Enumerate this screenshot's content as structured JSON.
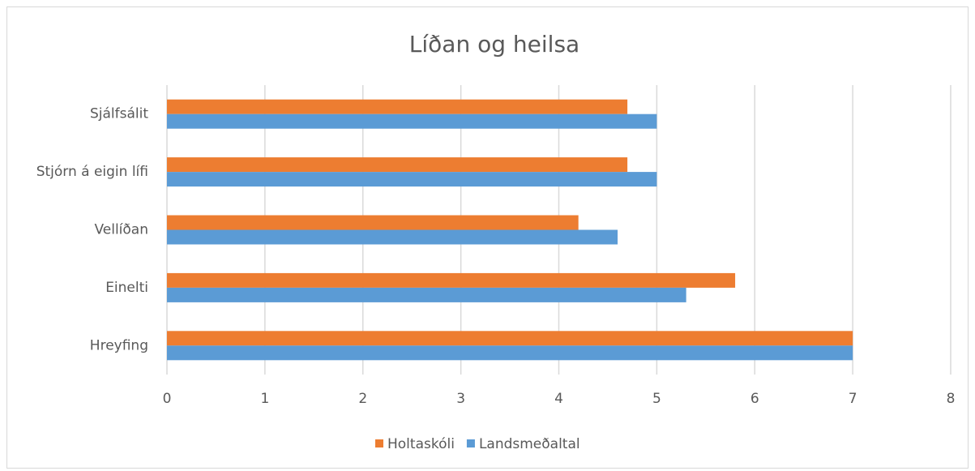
{
  "chart_data": {
    "type": "bar",
    "title": "Líðan og heilsa",
    "categories": [
      "Sjálfsálit",
      "Stjórn á eigin lífi",
      "Vellíðan",
      "Einelti",
      "Hreyfing"
    ],
    "series": [
      {
        "name": "Holtaskóli",
        "color": "#ed7d31",
        "values": [
          4.7,
          4.7,
          4.2,
          5.8,
          7
        ]
      },
      {
        "name": "Landsmeðaltal",
        "color": "#5b9bd5",
        "values": [
          5,
          5,
          4.6,
          5.3,
          7
        ]
      }
    ],
    "xlim": [
      0,
      8
    ],
    "xticks": [
      0,
      1,
      2,
      3,
      4,
      5,
      6,
      7,
      8
    ],
    "grid": true,
    "legend": "bottom"
  }
}
